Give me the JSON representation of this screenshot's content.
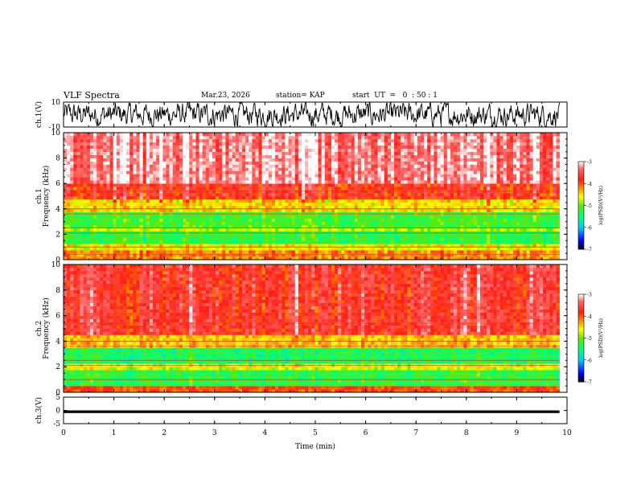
{
  "header": {
    "title": "VLF Spectra",
    "date": "Mar.23, 2026",
    "station": "station= KAP",
    "start": "start  UT  =   0  : 50 : 1"
  },
  "colorbar": {
    "label": "log(PSD)(V²/Hz)",
    "ticks": [
      "-3",
      "-4",
      "-5",
      "-6",
      "-7"
    ],
    "colors": [
      "#000000",
      "#0000ff",
      "#00ffff",
      "#00ff00",
      "#ffff00",
      "#ff8000",
      "#ff0000",
      "#ffffff"
    ]
  },
  "chart_data": [
    {
      "type": "line",
      "name": "ch1-voltage",
      "ylabel": "ch.1(V)",
      "ylim": [
        -10,
        10
      ],
      "yticks": [
        "10",
        "-10"
      ],
      "x_range_min": [
        0,
        9.85
      ],
      "description_values": {
        "typical_range": [
          -8,
          8
        ]
      }
    },
    {
      "type": "heatmap",
      "name": "ch1-spectrogram",
      "ylabel": "ch.1\nFrequency (kHz)",
      "ylabel_top": "ch.1",
      "ylabel_bottom": "Frequency  (kHz)",
      "ylim": [
        0,
        10
      ],
      "yticks": [
        "0",
        "2",
        "4",
        "6",
        "8",
        "10"
      ],
      "bands": [
        {
          "from": 0.0,
          "to": 0.7,
          "level": -4.2
        },
        {
          "from": 0.7,
          "to": 1.2,
          "level": -4.6
        },
        {
          "from": 1.2,
          "to": 2.2,
          "level": -5.3
        },
        {
          "from": 2.2,
          "to": 2.6,
          "level": -4.8
        },
        {
          "from": 2.6,
          "to": 3.8,
          "level": -5.2
        },
        {
          "from": 3.8,
          "to": 4.8,
          "level": -4.5
        },
        {
          "from": 4.8,
          "to": 6.0,
          "level": -3.8
        },
        {
          "from": 6.0,
          "to": 10.0,
          "level": -3.3
        }
      ]
    },
    {
      "type": "heatmap",
      "name": "ch2-spectrogram",
      "ylabel_top": "ch.2",
      "ylabel_bottom": "Frequency  (kHz)",
      "ylim": [
        0,
        10
      ],
      "yticks": [
        "0",
        "2",
        "4",
        "6",
        "8",
        "10"
      ],
      "bands": [
        {
          "from": 0.0,
          "to": 0.6,
          "level": -4.0
        },
        {
          "from": 0.6,
          "to": 1.8,
          "level": -5.3
        },
        {
          "from": 1.8,
          "to": 2.3,
          "level": -4.7
        },
        {
          "from": 2.3,
          "to": 3.4,
          "level": -5.4
        },
        {
          "from": 3.4,
          "to": 4.4,
          "level": -4.4
        },
        {
          "from": 4.4,
          "to": 10.0,
          "level": -3.7
        }
      ]
    },
    {
      "type": "line",
      "name": "ch3-voltage",
      "ylabel": "ch.3(V)",
      "ylim": [
        -5,
        5
      ],
      "yticks": [
        "5",
        "0",
        "-5"
      ],
      "band": [
        -1,
        0
      ]
    }
  ],
  "xaxis": {
    "label": "Time  (min)",
    "ticks": [
      "0",
      "1",
      "2",
      "3",
      "4",
      "5",
      "6",
      "7",
      "8",
      "9",
      "10"
    ],
    "xlim": [
      0,
      10
    ],
    "data_end": 9.85
  }
}
